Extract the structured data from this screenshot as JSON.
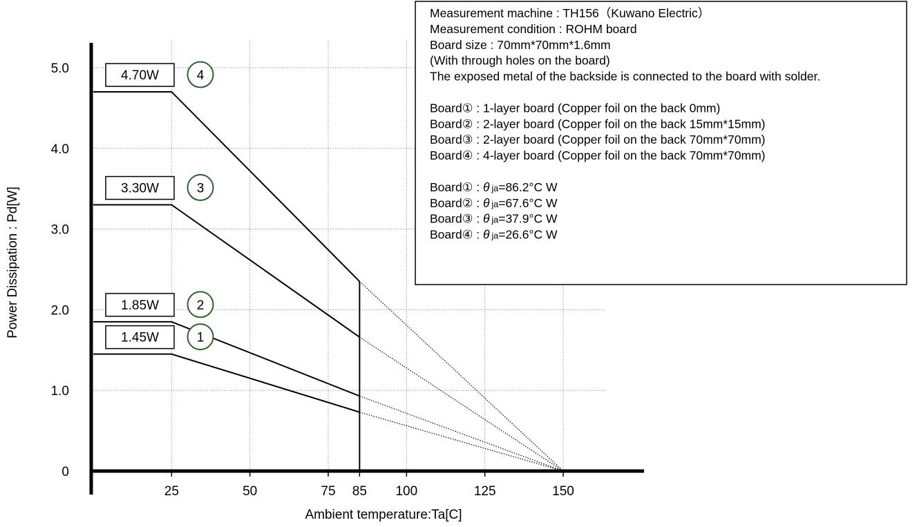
{
  "chart_data": {
    "type": "line",
    "title": "",
    "xlabel": "Ambient temperature:Ta[C]",
    "ylabel": "Power Dissipation : Pd[W]",
    "xlim": [
      0,
      150
    ],
    "ylim": [
      0,
      5.0
    ],
    "x_ticks": [
      {
        "value": 25,
        "label": "25"
      },
      {
        "value": 50,
        "label": "50"
      },
      {
        "value": 75,
        "label": "75"
      },
      {
        "value": 85,
        "label": "85"
      },
      {
        "value": 100,
        "label": "100"
      },
      {
        "value": 125,
        "label": "125"
      },
      {
        "value": 150,
        "label": "150"
      }
    ],
    "y_ticks": [
      {
        "value": 0,
        "label": "0"
      },
      {
        "value": 1.0,
        "label": "1.0"
      },
      {
        "value": 2.0,
        "label": "2.0"
      },
      {
        "value": 3.0,
        "label": "3.0"
      },
      {
        "value": 4.0,
        "label": "4.0"
      },
      {
        "value": 5.0,
        "label": "5.0"
      }
    ],
    "grid_x": [
      25,
      50,
      75,
      100,
      125,
      150
    ],
    "grid_y": [
      1.0,
      2.0,
      3.0,
      4.0,
      5.0
    ],
    "cutoff_x": 85,
    "series": [
      {
        "name": "1",
        "value_label": "1.45W",
        "solid": [
          [
            0,
            1.45
          ],
          [
            25,
            1.45
          ],
          [
            85,
            0.73
          ]
        ],
        "dotted": [
          [
            85,
            0.73
          ],
          [
            150,
            0
          ]
        ]
      },
      {
        "name": "2",
        "value_label": "1.85W",
        "solid": [
          [
            0,
            1.85
          ],
          [
            25,
            1.85
          ],
          [
            85,
            0.93
          ]
        ],
        "dotted": [
          [
            85,
            0.93
          ],
          [
            150,
            0
          ]
        ]
      },
      {
        "name": "3",
        "value_label": "3.30W",
        "solid": [
          [
            0,
            3.3
          ],
          [
            25,
            3.3
          ],
          [
            85,
            1.66
          ]
        ],
        "dotted": [
          [
            85,
            1.66
          ],
          [
            150,
            0
          ]
        ]
      },
      {
        "name": "4",
        "value_label": "4.70W",
        "solid": [
          [
            0,
            4.7
          ],
          [
            25,
            4.7
          ],
          [
            85,
            2.35
          ]
        ],
        "dotted": [
          [
            85,
            2.35
          ],
          [
            150,
            0
          ]
        ]
      }
    ],
    "grid": true,
    "legend_position": "top-right"
  },
  "info_box": {
    "lines": [
      {
        "text": "Measurement machine : TH156（Kuwano Electric）"
      },
      {
        "text": "Measurement condition : ROHM board"
      },
      {
        "text": "Board size : 70mm*70mm*1.6mm"
      },
      {
        "text": "(With through holes on the board)"
      },
      {
        "text": "The exposed metal of the backside is connected to the board with solder."
      },
      {
        "text": ""
      },
      {
        "text": "Board① : 1-layer board (Copper foil on the back 0mm)"
      },
      {
        "text": "Board② : 2-layer board (Copper foil on the back 15mm*15mm)"
      },
      {
        "text": "Board③ : 2-layer board (Copper foil on the back 70mm*70mm)"
      },
      {
        "text": "Board④ : 4-layer board (Copper foil on the back 70mm*70mm)"
      },
      {
        "text": ""
      }
    ],
    "theta_lines": [
      {
        "prefix": "Board① : ",
        "symbol": "θ",
        "subscript": "ja",
        "value": "=86.2°C W"
      },
      {
        "prefix": "Board② : ",
        "symbol": "θ",
        "subscript": "ja",
        "value": "=67.6°C W"
      },
      {
        "prefix": "Board③ : ",
        "symbol": "θ",
        "subscript": "ja",
        "value": "=37.9°C W"
      },
      {
        "prefix": "Board④ : ",
        "symbol": "θ",
        "subscript": "ja",
        "value": "=26.6°C W"
      }
    ]
  },
  "colors": {
    "axis": "#000000",
    "grid": "#999999",
    "series_line": "#000000",
    "badge_circle": "#2f5f2f"
  }
}
